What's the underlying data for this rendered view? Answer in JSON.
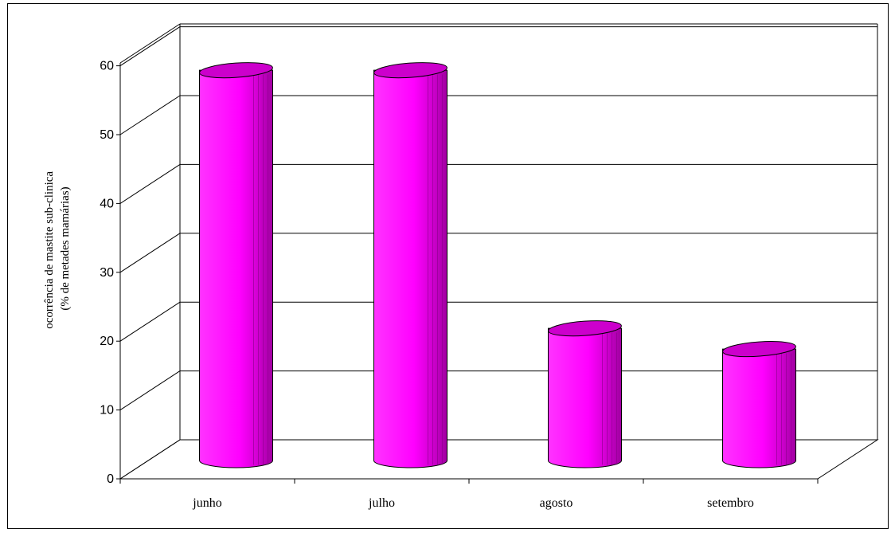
{
  "chart_data": {
    "type": "bar",
    "style": "3d-cylinder",
    "categories": [
      "junho",
      "julho",
      "agosto",
      "setembro"
    ],
    "values": [
      56,
      56,
      18.5,
      15.5
    ],
    "ylabel": [
      "ocorrência de mastite sub-clinica",
      "(% de metades mamárias)"
    ],
    "ylim": [
      0,
      60
    ],
    "yticks": [
      0,
      10,
      20,
      30,
      40,
      50,
      60
    ],
    "grid": true,
    "legend": "none",
    "colors": {
      "bar": "#FF00FF",
      "bar_dark": "#B000B0",
      "bar_top": "#CC00CC",
      "grid": "#000000"
    }
  }
}
